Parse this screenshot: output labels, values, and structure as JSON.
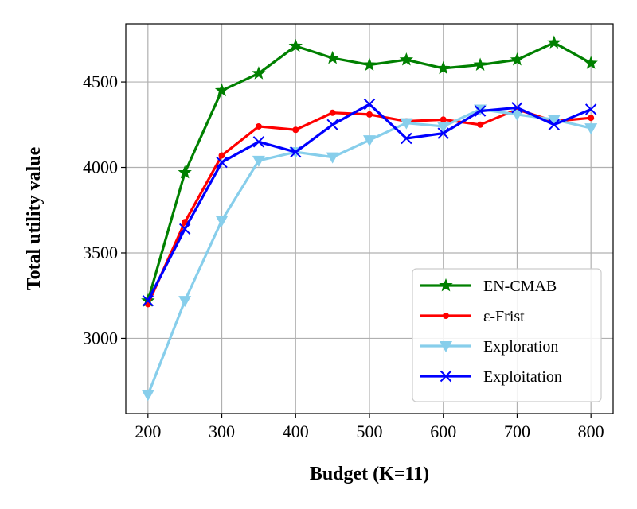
{
  "chart_data": {
    "type": "line",
    "title": "",
    "xlabel": "Budget (K=11)",
    "ylabel": "Total utility value",
    "x": [
      200,
      250,
      300,
      350,
      400,
      450,
      500,
      550,
      600,
      650,
      700,
      750,
      800
    ],
    "xlim": [
      170,
      830
    ],
    "ylim": [
      2560,
      4840
    ],
    "xticks": [
      "200",
      "300",
      "400",
      "500",
      "600",
      "700",
      "800"
    ],
    "yticks": [
      "3000",
      "3500",
      "4000",
      "4500"
    ],
    "grid": true,
    "legend_position": "lower-right",
    "series": [
      {
        "name": "EN-CMAB",
        "color": "#008000",
        "marker": "star",
        "values": [
          3220,
          3970,
          4450,
          4550,
          4710,
          4640,
          4600,
          4630,
          4580,
          4600,
          4630,
          4730,
          4610
        ]
      },
      {
        "name": "ε-Frist",
        "color": "#ff0000",
        "marker": "dot",
        "values": [
          3200,
          3680,
          4070,
          4240,
          4220,
          4320,
          4310,
          4270,
          4280,
          4250,
          4340,
          4270,
          4290
        ]
      },
      {
        "name": "Exploration",
        "color": "#87ceeb",
        "marker": "triangle-down",
        "values": [
          2670,
          3220,
          3690,
          4040,
          4090,
          4060,
          4160,
          4260,
          4240,
          4340,
          4310,
          4280,
          4230
        ]
      },
      {
        "name": "Exploitation",
        "color": "#0000ff",
        "marker": "x",
        "values": [
          3220,
          3640,
          4030,
          4150,
          4090,
          4250,
          4370,
          4170,
          4200,
          4330,
          4350,
          4250,
          4340
        ]
      }
    ]
  }
}
